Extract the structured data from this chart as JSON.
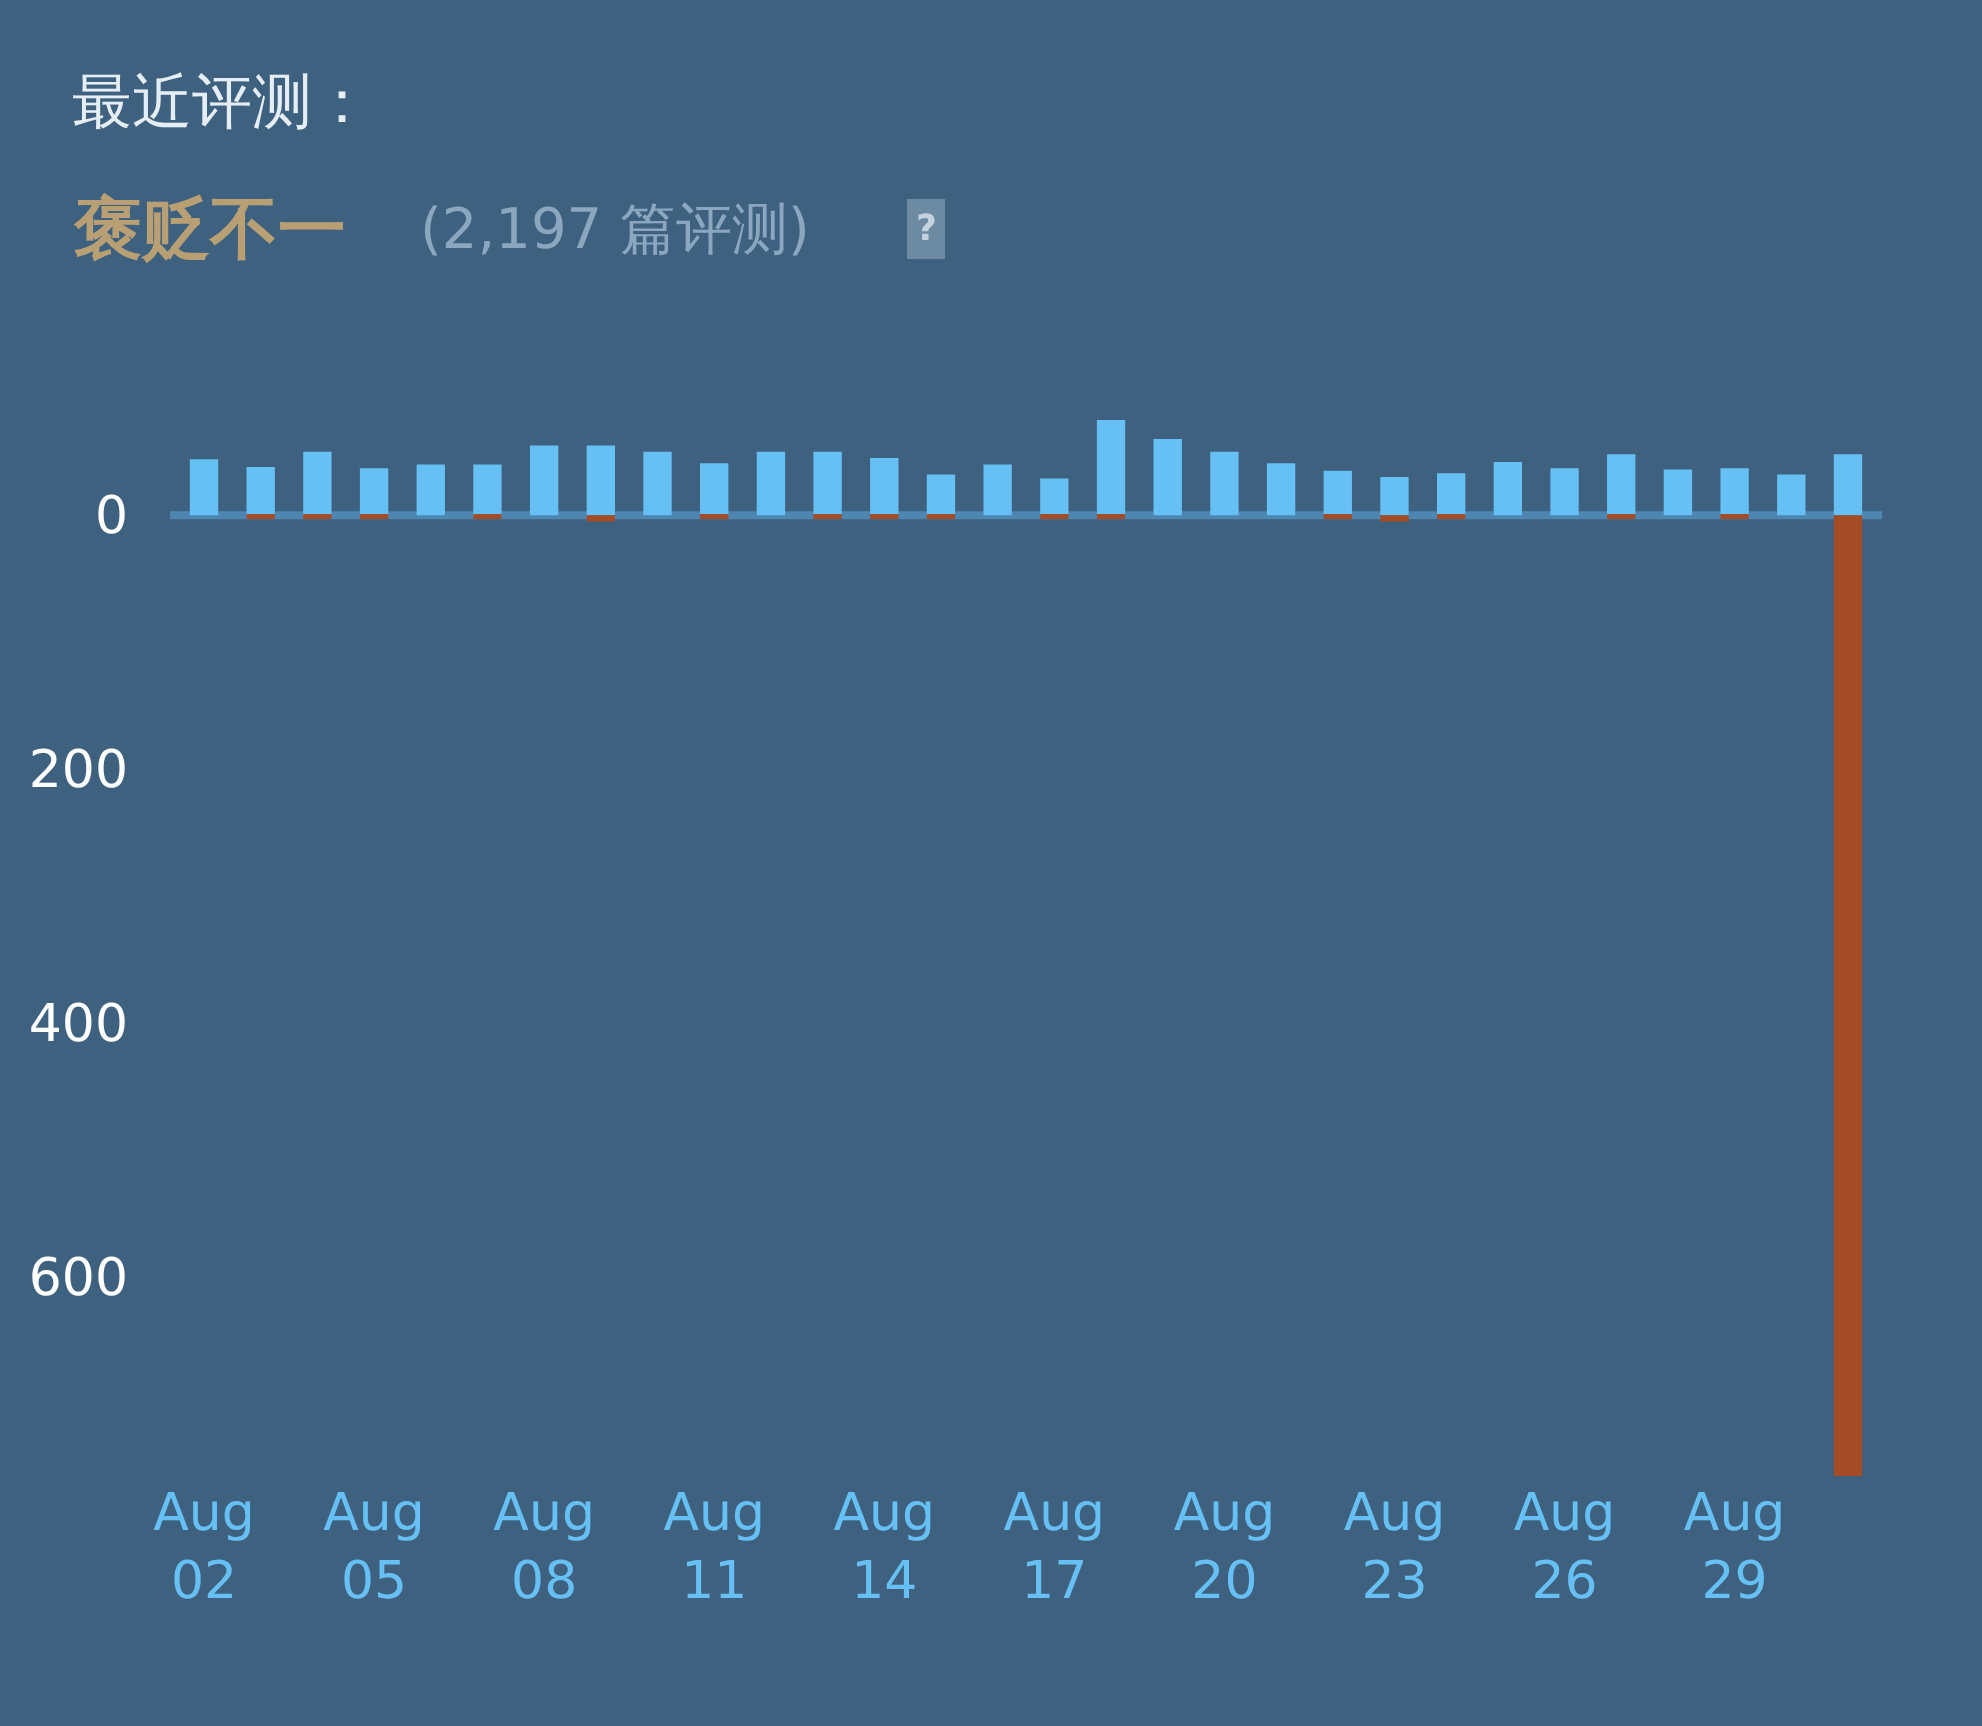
{
  "chart_data": {
    "type": "bar",
    "title": "最近评测：",
    "subtitle": "褒贬不一",
    "annotations": [
      "(2,197 篇评测)",
      "?"
    ],
    "categories": [
      "Aug\n02",
      null,
      null,
      "Aug\n05",
      null,
      null,
      "Aug\n08",
      null,
      null,
      "Aug\n11",
      null,
      null,
      "Aug\n14",
      null,
      null,
      "Aug\n17",
      null,
      null,
      "Aug\n20",
      null,
      null,
      "Aug\n23",
      null,
      null,
      "Aug\n26",
      null,
      null,
      "Aug\n29",
      null,
      null
    ],
    "stacked": true,
    "series": [
      {
        "color": "#66c0f4",
        "values": [
          44,
          38,
          50,
          37,
          40,
          40,
          55,
          55,
          50,
          41,
          50,
          50,
          45,
          32,
          40,
          29,
          75,
          60,
          50,
          41,
          35,
          30,
          33,
          42,
          37,
          48,
          36,
          37,
          32,
          48
        ]
      },
      {
        "color": "#a34c25",
        "values": [
          0,
          -3,
          -3,
          -3,
          0,
          -3,
          0,
          -5,
          0,
          -3,
          0,
          -3,
          -3,
          -3,
          0,
          -3,
          -3,
          0,
          0,
          0,
          -3,
          -5,
          -3,
          0,
          0,
          -3,
          0,
          -3,
          0,
          -757
        ]
      }
    ],
    "ylim": [
      -757,
      75
    ],
    "ref_lines": [
      {
        "axis": "y",
        "value": 0,
        "color": "#4d86b0"
      }
    ],
    "yticks": [
      {
        "value": 0,
        "label": "0"
      },
      {
        "value": -200,
        "label": "200"
      },
      {
        "value": -400,
        "label": "400"
      },
      {
        "value": -600,
        "label": "600"
      }
    ],
    "tick_labels": true
  }
}
